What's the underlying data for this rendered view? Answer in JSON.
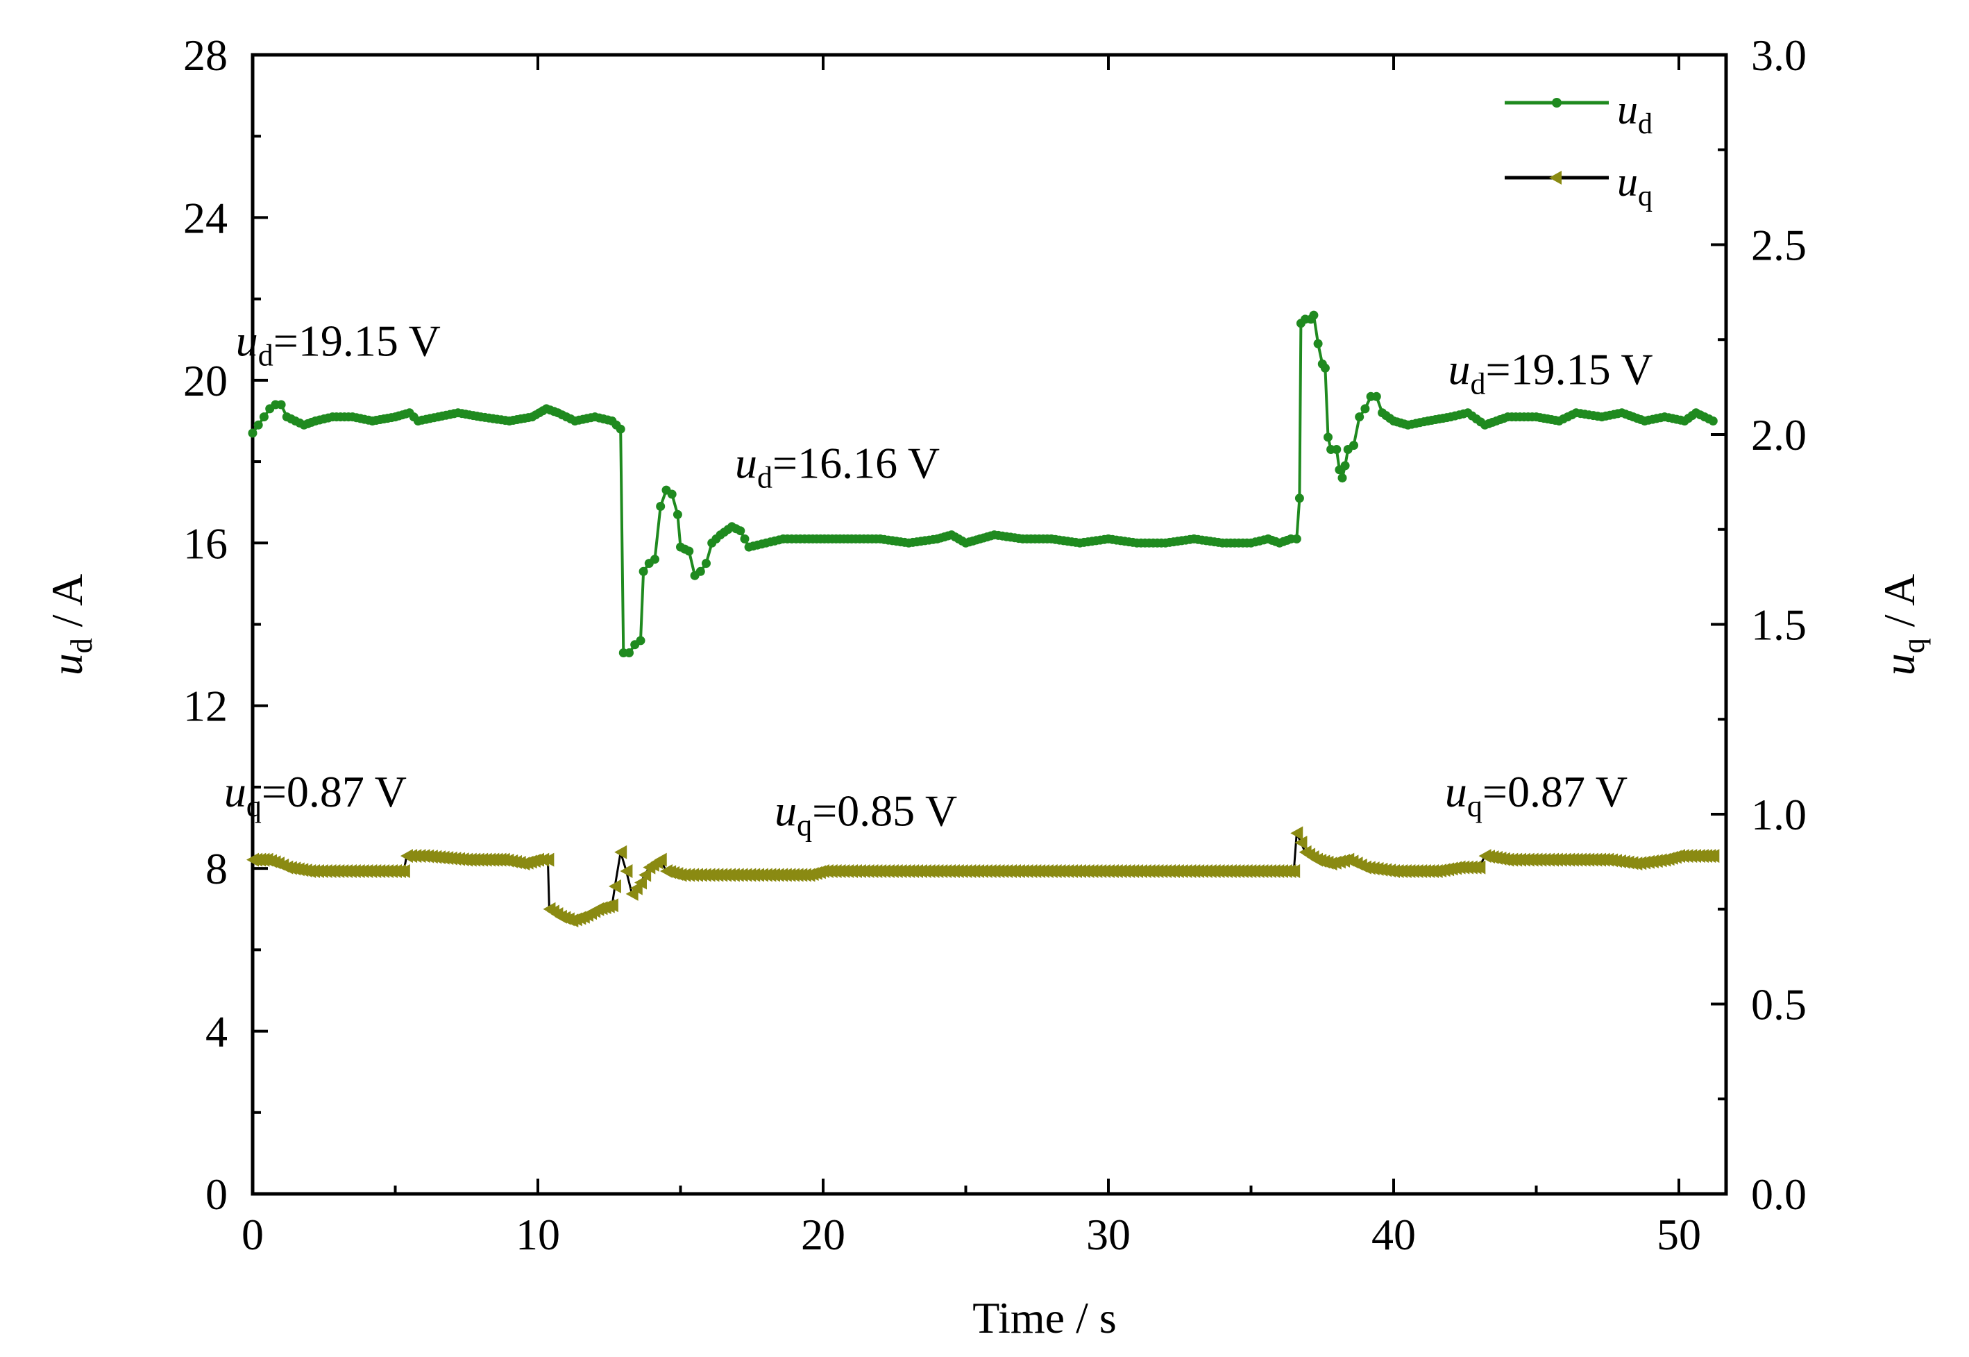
{
  "chart_data": {
    "type": "line",
    "title": "",
    "xlabel": "Time / s",
    "x_ticks": [
      "0",
      "10",
      "20",
      "30",
      "40",
      "50"
    ],
    "xlim": [
      0,
      52
    ],
    "y_left": {
      "label_var": "u",
      "label_sub": "d",
      "label_unit": " / A",
      "ylim": [
        0,
        28
      ],
      "ticks": [
        "0",
        "4",
        "8",
        "12",
        "16",
        "20",
        "24",
        "28"
      ]
    },
    "y_right": {
      "label_var": "u",
      "label_sub": "q",
      "label_unit": " / A",
      "ylim": [
        0,
        3.0
      ],
      "ticks": [
        "0.0",
        "0.5",
        "1.0",
        "1.5",
        "2.0",
        "2.5",
        "3.0"
      ]
    },
    "colors": {
      "ud": "#1f8a1f",
      "uq": "#8a8a12",
      "uq_step": "#000000"
    },
    "legend": [
      {
        "var": "u",
        "sub": "d",
        "marker": "circle"
      },
      {
        "var": "u",
        "sub": "q",
        "marker": "triangle-left"
      }
    ],
    "annotations": [
      {
        "var": "u",
        "sub": "d",
        "text": "=19.15 V",
        "x": 3,
        "y": 20.6,
        "axis": "left"
      },
      {
        "var": "u",
        "sub": "d",
        "text": "=16.16 V",
        "x": 20.5,
        "y": 17.6,
        "axis": "left"
      },
      {
        "var": "u",
        "sub": "d",
        "text": "=19.15 V",
        "x": 45.5,
        "y": 19.9,
        "axis": "left"
      },
      {
        "var": "u",
        "sub": "q",
        "text": "=0.87 V",
        "x": 2.2,
        "y": 1.02,
        "axis": "right"
      },
      {
        "var": "u",
        "sub": "q",
        "text": "=0.85 V",
        "x": 21.5,
        "y": 0.97,
        "axis": "right"
      },
      {
        "var": "u",
        "sub": "q",
        "text": "=0.87 V",
        "x": 45,
        "y": 1.02,
        "axis": "right"
      }
    ],
    "series": [
      {
        "name": "ud",
        "axis": "left",
        "points": [
          [
            0.0,
            18.7
          ],
          [
            0.2,
            18.9
          ],
          [
            0.4,
            19.1
          ],
          [
            0.6,
            19.3
          ],
          [
            0.8,
            19.4
          ],
          [
            1.0,
            19.4
          ],
          [
            1.2,
            19.1
          ],
          [
            1.5,
            19.0
          ],
          [
            1.8,
            18.9
          ],
          [
            2.2,
            19.0
          ],
          [
            2.8,
            19.1
          ],
          [
            3.5,
            19.1
          ],
          [
            4.2,
            19.0
          ],
          [
            5.0,
            19.1
          ],
          [
            5.5,
            19.2
          ],
          [
            5.8,
            19.0
          ],
          [
            6.5,
            19.1
          ],
          [
            7.2,
            19.2
          ],
          [
            8.0,
            19.1
          ],
          [
            9.0,
            19.0
          ],
          [
            9.8,
            19.1
          ],
          [
            10.3,
            19.3
          ],
          [
            10.7,
            19.2
          ],
          [
            11.3,
            19.0
          ],
          [
            12.0,
            19.1
          ],
          [
            12.6,
            19.0
          ],
          [
            12.9,
            18.8
          ],
          [
            13.0,
            13.3
          ],
          [
            13.2,
            13.3
          ],
          [
            13.4,
            13.5
          ],
          [
            13.6,
            13.6
          ],
          [
            13.7,
            15.3
          ],
          [
            13.9,
            15.5
          ],
          [
            14.1,
            15.6
          ],
          [
            14.3,
            16.9
          ],
          [
            14.5,
            17.3
          ],
          [
            14.7,
            17.2
          ],
          [
            14.9,
            16.7
          ],
          [
            15.0,
            15.9
          ],
          [
            15.3,
            15.8
          ],
          [
            15.5,
            15.2
          ],
          [
            15.7,
            15.3
          ],
          [
            15.9,
            15.5
          ],
          [
            16.1,
            16.0
          ],
          [
            16.4,
            16.2
          ],
          [
            16.8,
            16.4
          ],
          [
            17.1,
            16.3
          ],
          [
            17.4,
            15.9
          ],
          [
            18.0,
            16.0
          ],
          [
            18.6,
            16.1
          ],
          [
            19.5,
            16.1
          ],
          [
            21.0,
            16.1
          ],
          [
            22.0,
            16.1
          ],
          [
            23.0,
            16.0
          ],
          [
            24.0,
            16.1
          ],
          [
            24.5,
            16.2
          ],
          [
            25.0,
            16.0
          ],
          [
            25.5,
            16.1
          ],
          [
            26.0,
            16.2
          ],
          [
            27.0,
            16.1
          ],
          [
            28.0,
            16.1
          ],
          [
            29.0,
            16.0
          ],
          [
            30.0,
            16.1
          ],
          [
            31.0,
            16.0
          ],
          [
            32.0,
            16.0
          ],
          [
            33.0,
            16.1
          ],
          [
            34.0,
            16.0
          ],
          [
            35.0,
            16.0
          ],
          [
            35.6,
            16.1
          ],
          [
            36.0,
            16.0
          ],
          [
            36.4,
            16.1
          ],
          [
            36.6,
            16.1
          ],
          [
            36.7,
            17.1
          ],
          [
            36.75,
            21.4
          ],
          [
            36.9,
            21.5
          ],
          [
            37.1,
            21.5
          ],
          [
            37.2,
            21.6
          ],
          [
            37.35,
            20.9
          ],
          [
            37.5,
            20.4
          ],
          [
            37.6,
            20.3
          ],
          [
            37.7,
            18.6
          ],
          [
            37.8,
            18.3
          ],
          [
            38.0,
            18.3
          ],
          [
            38.1,
            17.8
          ],
          [
            38.2,
            17.6
          ],
          [
            38.3,
            17.9
          ],
          [
            38.4,
            18.3
          ],
          [
            38.6,
            18.4
          ],
          [
            38.8,
            19.1
          ],
          [
            39.0,
            19.3
          ],
          [
            39.2,
            19.6
          ],
          [
            39.4,
            19.6
          ],
          [
            39.6,
            19.2
          ],
          [
            40.0,
            19.0
          ],
          [
            40.5,
            18.9
          ],
          [
            41.2,
            19.0
          ],
          [
            42.0,
            19.1
          ],
          [
            42.6,
            19.2
          ],
          [
            43.2,
            18.9
          ],
          [
            44.0,
            19.1
          ],
          [
            45.0,
            19.1
          ],
          [
            45.8,
            19.0
          ],
          [
            46.4,
            19.2
          ],
          [
            47.3,
            19.1
          ],
          [
            48.0,
            19.2
          ],
          [
            48.8,
            19.0
          ],
          [
            49.5,
            19.1
          ],
          [
            50.2,
            19.0
          ],
          [
            50.6,
            19.2
          ],
          [
            50.9,
            19.1
          ],
          [
            51.2,
            19.0
          ]
        ]
      },
      {
        "name": "uq",
        "axis": "right",
        "points": [
          [
            0.0,
            0.88
          ],
          [
            0.5,
            0.88
          ],
          [
            0.9,
            0.87
          ],
          [
            1.2,
            0.86
          ],
          [
            2.0,
            0.85
          ],
          [
            3.0,
            0.85
          ],
          [
            4.0,
            0.85
          ],
          [
            5.3,
            0.85
          ],
          [
            5.4,
            0.89
          ],
          [
            6.0,
            0.89
          ],
          [
            7.5,
            0.88
          ],
          [
            8.3,
            0.88
          ],
          [
            8.8,
            0.88
          ],
          [
            9.5,
            0.87
          ],
          [
            10.0,
            0.88
          ],
          [
            10.35,
            0.88
          ],
          [
            10.4,
            0.75
          ],
          [
            10.8,
            0.73
          ],
          [
            11.2,
            0.72
          ],
          [
            11.6,
            0.73
          ],
          [
            12.1,
            0.75
          ],
          [
            12.6,
            0.76
          ],
          [
            12.7,
            0.81
          ],
          [
            12.9,
            0.9
          ],
          [
            13.1,
            0.85
          ],
          [
            13.3,
            0.79
          ],
          [
            13.6,
            0.82
          ],
          [
            13.9,
            0.86
          ],
          [
            14.3,
            0.88
          ],
          [
            14.5,
            0.85
          ],
          [
            15.0,
            0.84
          ],
          [
            16.0,
            0.84
          ],
          [
            17.0,
            0.84
          ],
          [
            18.0,
            0.84
          ],
          [
            19.5,
            0.84
          ],
          [
            20.0,
            0.85
          ],
          [
            22.0,
            0.85
          ],
          [
            25.0,
            0.85
          ],
          [
            28.0,
            0.85
          ],
          [
            31.0,
            0.85
          ],
          [
            34.0,
            0.85
          ],
          [
            36.5,
            0.85
          ],
          [
            36.6,
            0.95
          ],
          [
            36.9,
            0.9
          ],
          [
            37.3,
            0.88
          ],
          [
            37.8,
            0.87
          ],
          [
            38.4,
            0.88
          ],
          [
            39.0,
            0.86
          ],
          [
            40.0,
            0.85
          ],
          [
            41.5,
            0.85
          ],
          [
            42.3,
            0.86
          ],
          [
            43.0,
            0.86
          ],
          [
            43.2,
            0.89
          ],
          [
            44.0,
            0.88
          ],
          [
            45.0,
            0.88
          ],
          [
            46.0,
            0.88
          ],
          [
            47.5,
            0.88
          ],
          [
            48.5,
            0.87
          ],
          [
            49.5,
            0.88
          ],
          [
            50.0,
            0.89
          ],
          [
            50.7,
            0.89
          ],
          [
            51.2,
            0.89
          ]
        ]
      }
    ]
  }
}
